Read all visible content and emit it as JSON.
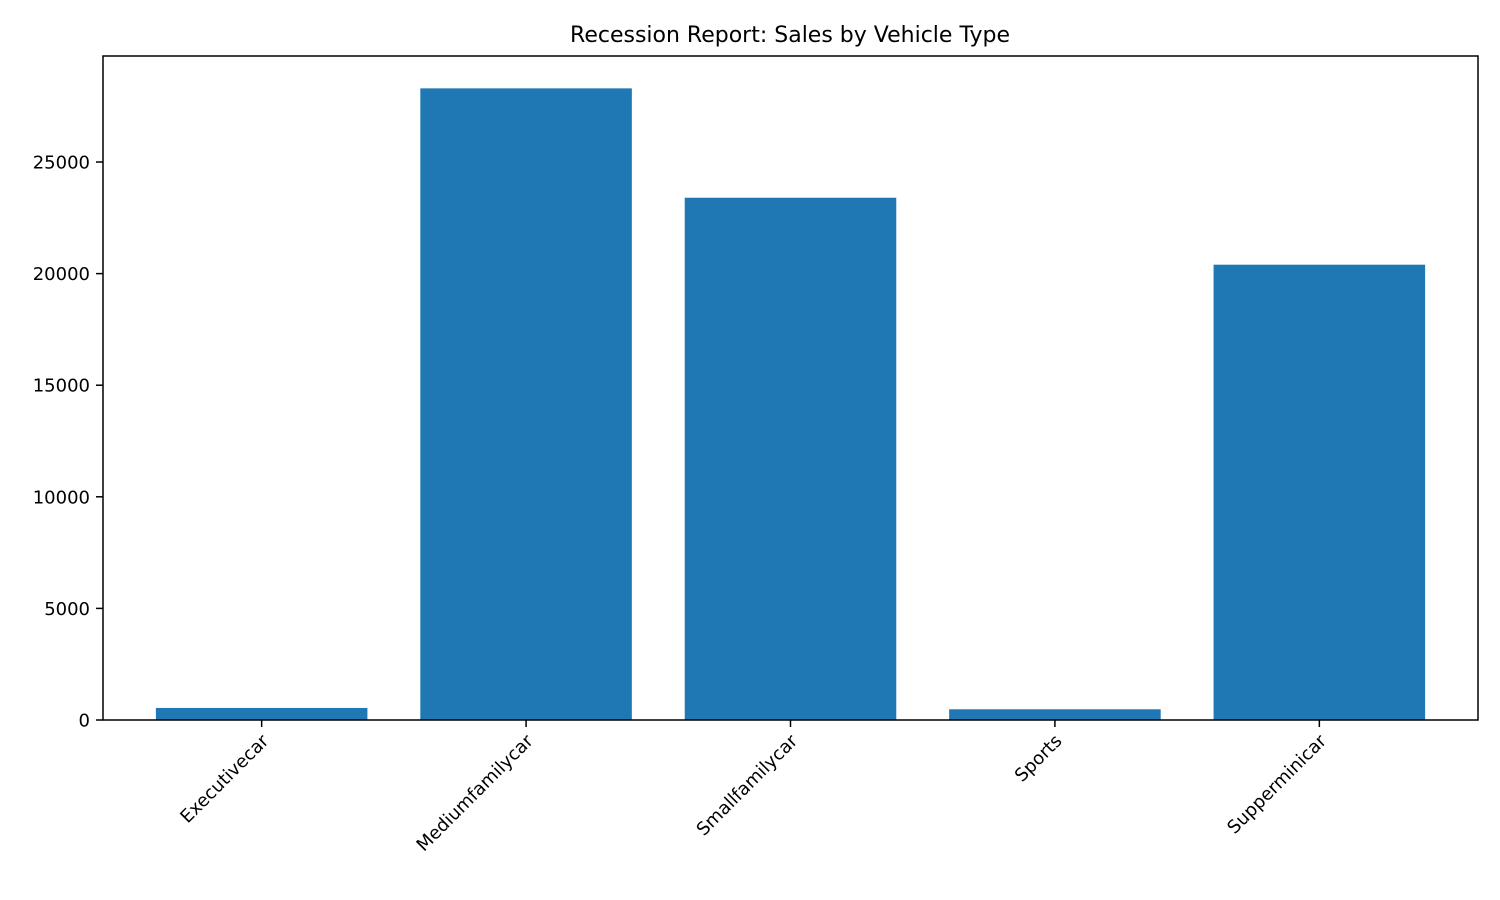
{
  "chart_data": {
    "type": "bar",
    "title": "Recession Report: Sales by Vehicle Type",
    "xlabel": "",
    "ylabel": "",
    "categories": [
      "Executivecar",
      "Mediumfamilycar",
      "Smallfamilycar",
      "Sports",
      "Supperminicar"
    ],
    "values": [
      540,
      28300,
      23400,
      480,
      20400
    ],
    "ylim": [
      0,
      29750
    ],
    "yticks": [
      0,
      5000,
      10000,
      15000,
      20000,
      25000
    ],
    "grid": false,
    "bar_color": "#1f77b4"
  }
}
